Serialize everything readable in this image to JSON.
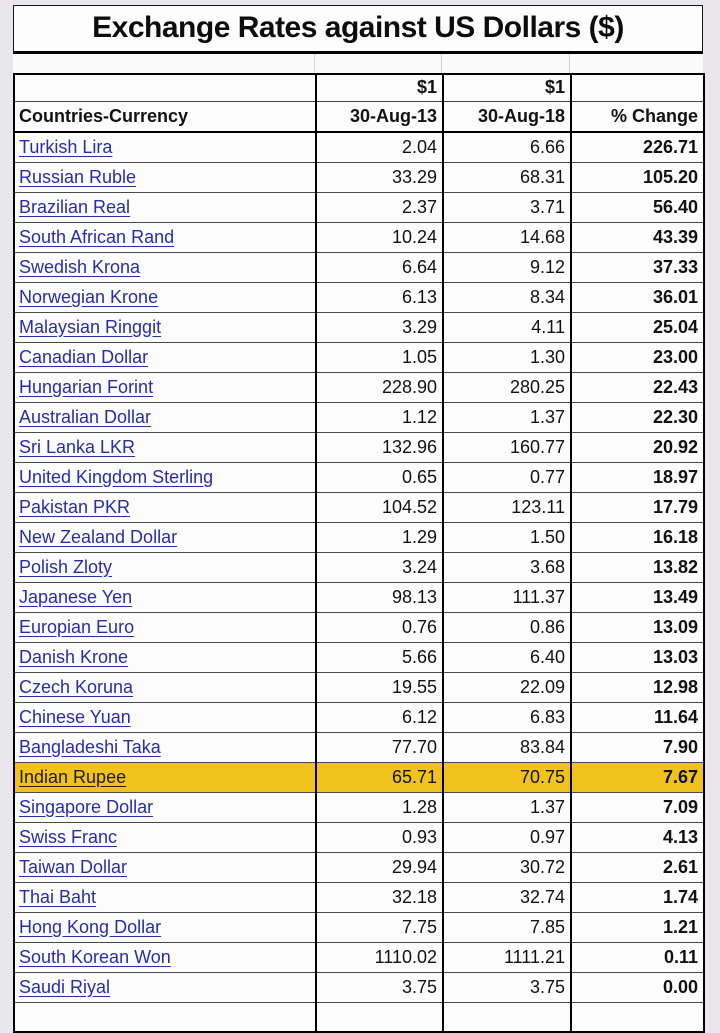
{
  "title": "Exchange Rates against US Dollars ($)",
  "colors": {
    "page_background": "#E9E7EB",
    "link_blue": "#282DA8",
    "highlight_gold": "#EFC31C",
    "highlight_text": "#221C04",
    "grid_border": "#000000"
  },
  "table": {
    "unit_label_2013": "$1",
    "unit_label_2018": "$1",
    "columns": [
      "Countries-Currency",
      "30-Aug-13",
      "30-Aug-18",
      "% Change"
    ],
    "rows": [
      {
        "currency": "Turkish Lira",
        "rate_30_aug_13": "2.04",
        "rate_30_aug_18": "6.66",
        "pct_change": "226.71",
        "highlighted": false
      },
      {
        "currency": "Russian Ruble",
        "rate_30_aug_13": "33.29",
        "rate_30_aug_18": "68.31",
        "pct_change": "105.20",
        "highlighted": false
      },
      {
        "currency": "Brazilian Real",
        "rate_30_aug_13": "2.37",
        "rate_30_aug_18": "3.71",
        "pct_change": "56.40",
        "highlighted": false
      },
      {
        "currency": "South African Rand",
        "rate_30_aug_13": "10.24",
        "rate_30_aug_18": "14.68",
        "pct_change": "43.39",
        "highlighted": false
      },
      {
        "currency": "Swedish Krona",
        "rate_30_aug_13": "6.64",
        "rate_30_aug_18": "9.12",
        "pct_change": "37.33",
        "highlighted": false
      },
      {
        "currency": "Norwegian Krone",
        "rate_30_aug_13": "6.13",
        "rate_30_aug_18": "8.34",
        "pct_change": "36.01",
        "highlighted": false
      },
      {
        "currency": "Malaysian Ringgit",
        "rate_30_aug_13": "3.29",
        "rate_30_aug_18": "4.11",
        "pct_change": "25.04",
        "highlighted": false
      },
      {
        "currency": "Canadian Dollar",
        "rate_30_aug_13": "1.05",
        "rate_30_aug_18": "1.30",
        "pct_change": "23.00",
        "highlighted": false
      },
      {
        "currency": "Hungarian Forint",
        "rate_30_aug_13": "228.90",
        "rate_30_aug_18": "280.25",
        "pct_change": "22.43",
        "highlighted": false
      },
      {
        "currency": "Australian Dollar",
        "rate_30_aug_13": "1.12",
        "rate_30_aug_18": "1.37",
        "pct_change": "22.30",
        "highlighted": false
      },
      {
        "currency": "Sri Lanka LKR",
        "rate_30_aug_13": "132.96",
        "rate_30_aug_18": "160.77",
        "pct_change": "20.92",
        "highlighted": false
      },
      {
        "currency": "United Kingdom Sterling",
        "rate_30_aug_13": "0.65",
        "rate_30_aug_18": "0.77",
        "pct_change": "18.97",
        "highlighted": false
      },
      {
        "currency": "Pakistan PKR",
        "rate_30_aug_13": "104.52",
        "rate_30_aug_18": "123.11",
        "pct_change": "17.79",
        "highlighted": false
      },
      {
        "currency": "New Zealand Dollar",
        "rate_30_aug_13": "1.29",
        "rate_30_aug_18": "1.50",
        "pct_change": "16.18",
        "highlighted": false
      },
      {
        "currency": "Polish Zloty",
        "rate_30_aug_13": "3.24",
        "rate_30_aug_18": "3.68",
        "pct_change": "13.82",
        "highlighted": false
      },
      {
        "currency": "Japanese Yen",
        "rate_30_aug_13": "98.13",
        "rate_30_aug_18": "111.37",
        "pct_change": "13.49",
        "highlighted": false
      },
      {
        "currency": "Europian Euro",
        "rate_30_aug_13": "0.76",
        "rate_30_aug_18": "0.86",
        "pct_change": "13.09",
        "highlighted": false
      },
      {
        "currency": "Danish Krone",
        "rate_30_aug_13": "5.66",
        "rate_30_aug_18": "6.40",
        "pct_change": "13.03",
        "highlighted": false
      },
      {
        "currency": "Czech Koruna",
        "rate_30_aug_13": "19.55",
        "rate_30_aug_18": "22.09",
        "pct_change": "12.98",
        "highlighted": false
      },
      {
        "currency": "Chinese Yuan",
        "rate_30_aug_13": "6.12",
        "rate_30_aug_18": "6.83",
        "pct_change": "11.64",
        "highlighted": false
      },
      {
        "currency": "Bangladeshi Taka",
        "rate_30_aug_13": "77.70",
        "rate_30_aug_18": "83.84",
        "pct_change": "7.90",
        "highlighted": false
      },
      {
        "currency": "Indian Rupee",
        "rate_30_aug_13": "65.71",
        "rate_30_aug_18": "70.75",
        "pct_change": "7.67",
        "highlighted": true
      },
      {
        "currency": "Singapore Dollar",
        "rate_30_aug_13": "1.28",
        "rate_30_aug_18": "1.37",
        "pct_change": "7.09",
        "highlighted": false
      },
      {
        "currency": "Swiss Franc",
        "rate_30_aug_13": "0.93",
        "rate_30_aug_18": "0.97",
        "pct_change": "4.13",
        "highlighted": false
      },
      {
        "currency": "Taiwan Dollar",
        "rate_30_aug_13": "29.94",
        "rate_30_aug_18": "30.72",
        "pct_change": "2.61",
        "highlighted": false
      },
      {
        "currency": "Thai Baht",
        "rate_30_aug_13": "32.18",
        "rate_30_aug_18": "32.74",
        "pct_change": "1.74",
        "highlighted": false
      },
      {
        "currency": "Hong Kong Dollar",
        "rate_30_aug_13": "7.75",
        "rate_30_aug_18": "7.85",
        "pct_change": "1.21",
        "highlighted": false
      },
      {
        "currency": "South Korean Won",
        "rate_30_aug_13": "1110.02",
        "rate_30_aug_18": "1111.21",
        "pct_change": "0.11",
        "highlighted": false
      },
      {
        "currency": "Saudi Riyal",
        "rate_30_aug_13": "3.75",
        "rate_30_aug_18": "3.75",
        "pct_change": "0.00",
        "highlighted": false
      }
    ]
  }
}
